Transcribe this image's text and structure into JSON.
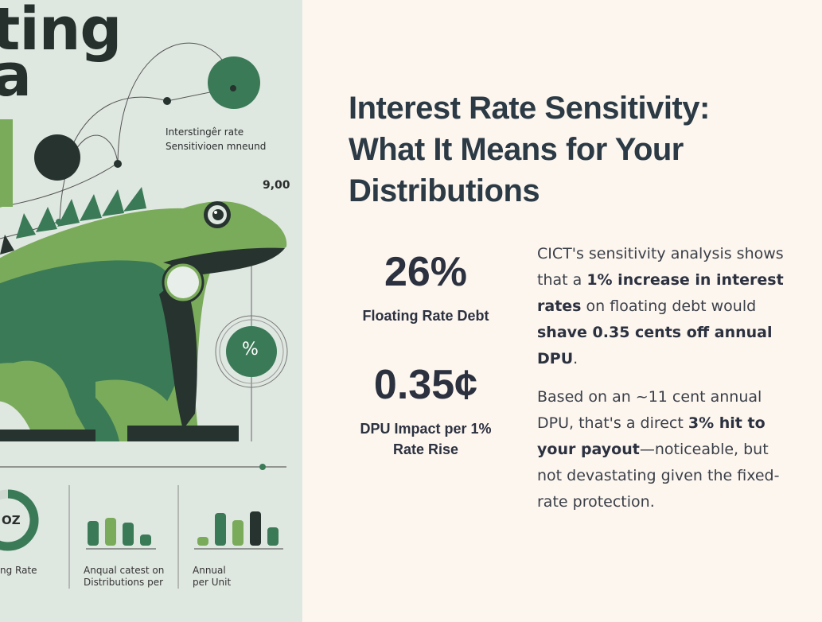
{
  "illustration": {
    "title_lines": [
      "ting",
      "a"
    ],
    "callout_lines": [
      "Interstingêr rate",
      "Sensitivioen mneund"
    ],
    "axis_number": "9,00",
    "percent_symbol": "%",
    "donut_label": "OZ",
    "bottom_labels": [
      [
        "ng Rate"
      ],
      [
        "Anqual catest on",
        "Distributions per"
      ],
      [
        "Annual",
        "per Unit"
      ]
    ],
    "colors": {
      "dark": "#26332f",
      "green": "#3b7a57",
      "light_green": "#7aab5a",
      "background": "#dfe7e1"
    }
  },
  "heading": {
    "lines": [
      "Interest Rate Sensitivity:",
      "What It Means for Your",
      "Distributions"
    ]
  },
  "stats": [
    {
      "value": "26%",
      "label_lines": [
        "Floating Rate Debt"
      ]
    },
    {
      "value": "0.35¢",
      "label_lines": [
        "DPU Impact per 1%",
        "Rate Rise"
      ]
    }
  ],
  "body": {
    "p1": {
      "t1": "CICT's sensitivity analysis shows that a ",
      "b1": "1% increase in interest rates",
      "t2": " on floating debt would ",
      "b2": "shave 0.35 cents off annual DPU",
      "t3": "."
    },
    "p2": {
      "t1": "Based on an ~11 cent annual DPU, that's a direct ",
      "b1": "3% hit to your payout",
      "t2": "—noticeable, but not devastating given the fixed-rate protection."
    }
  }
}
